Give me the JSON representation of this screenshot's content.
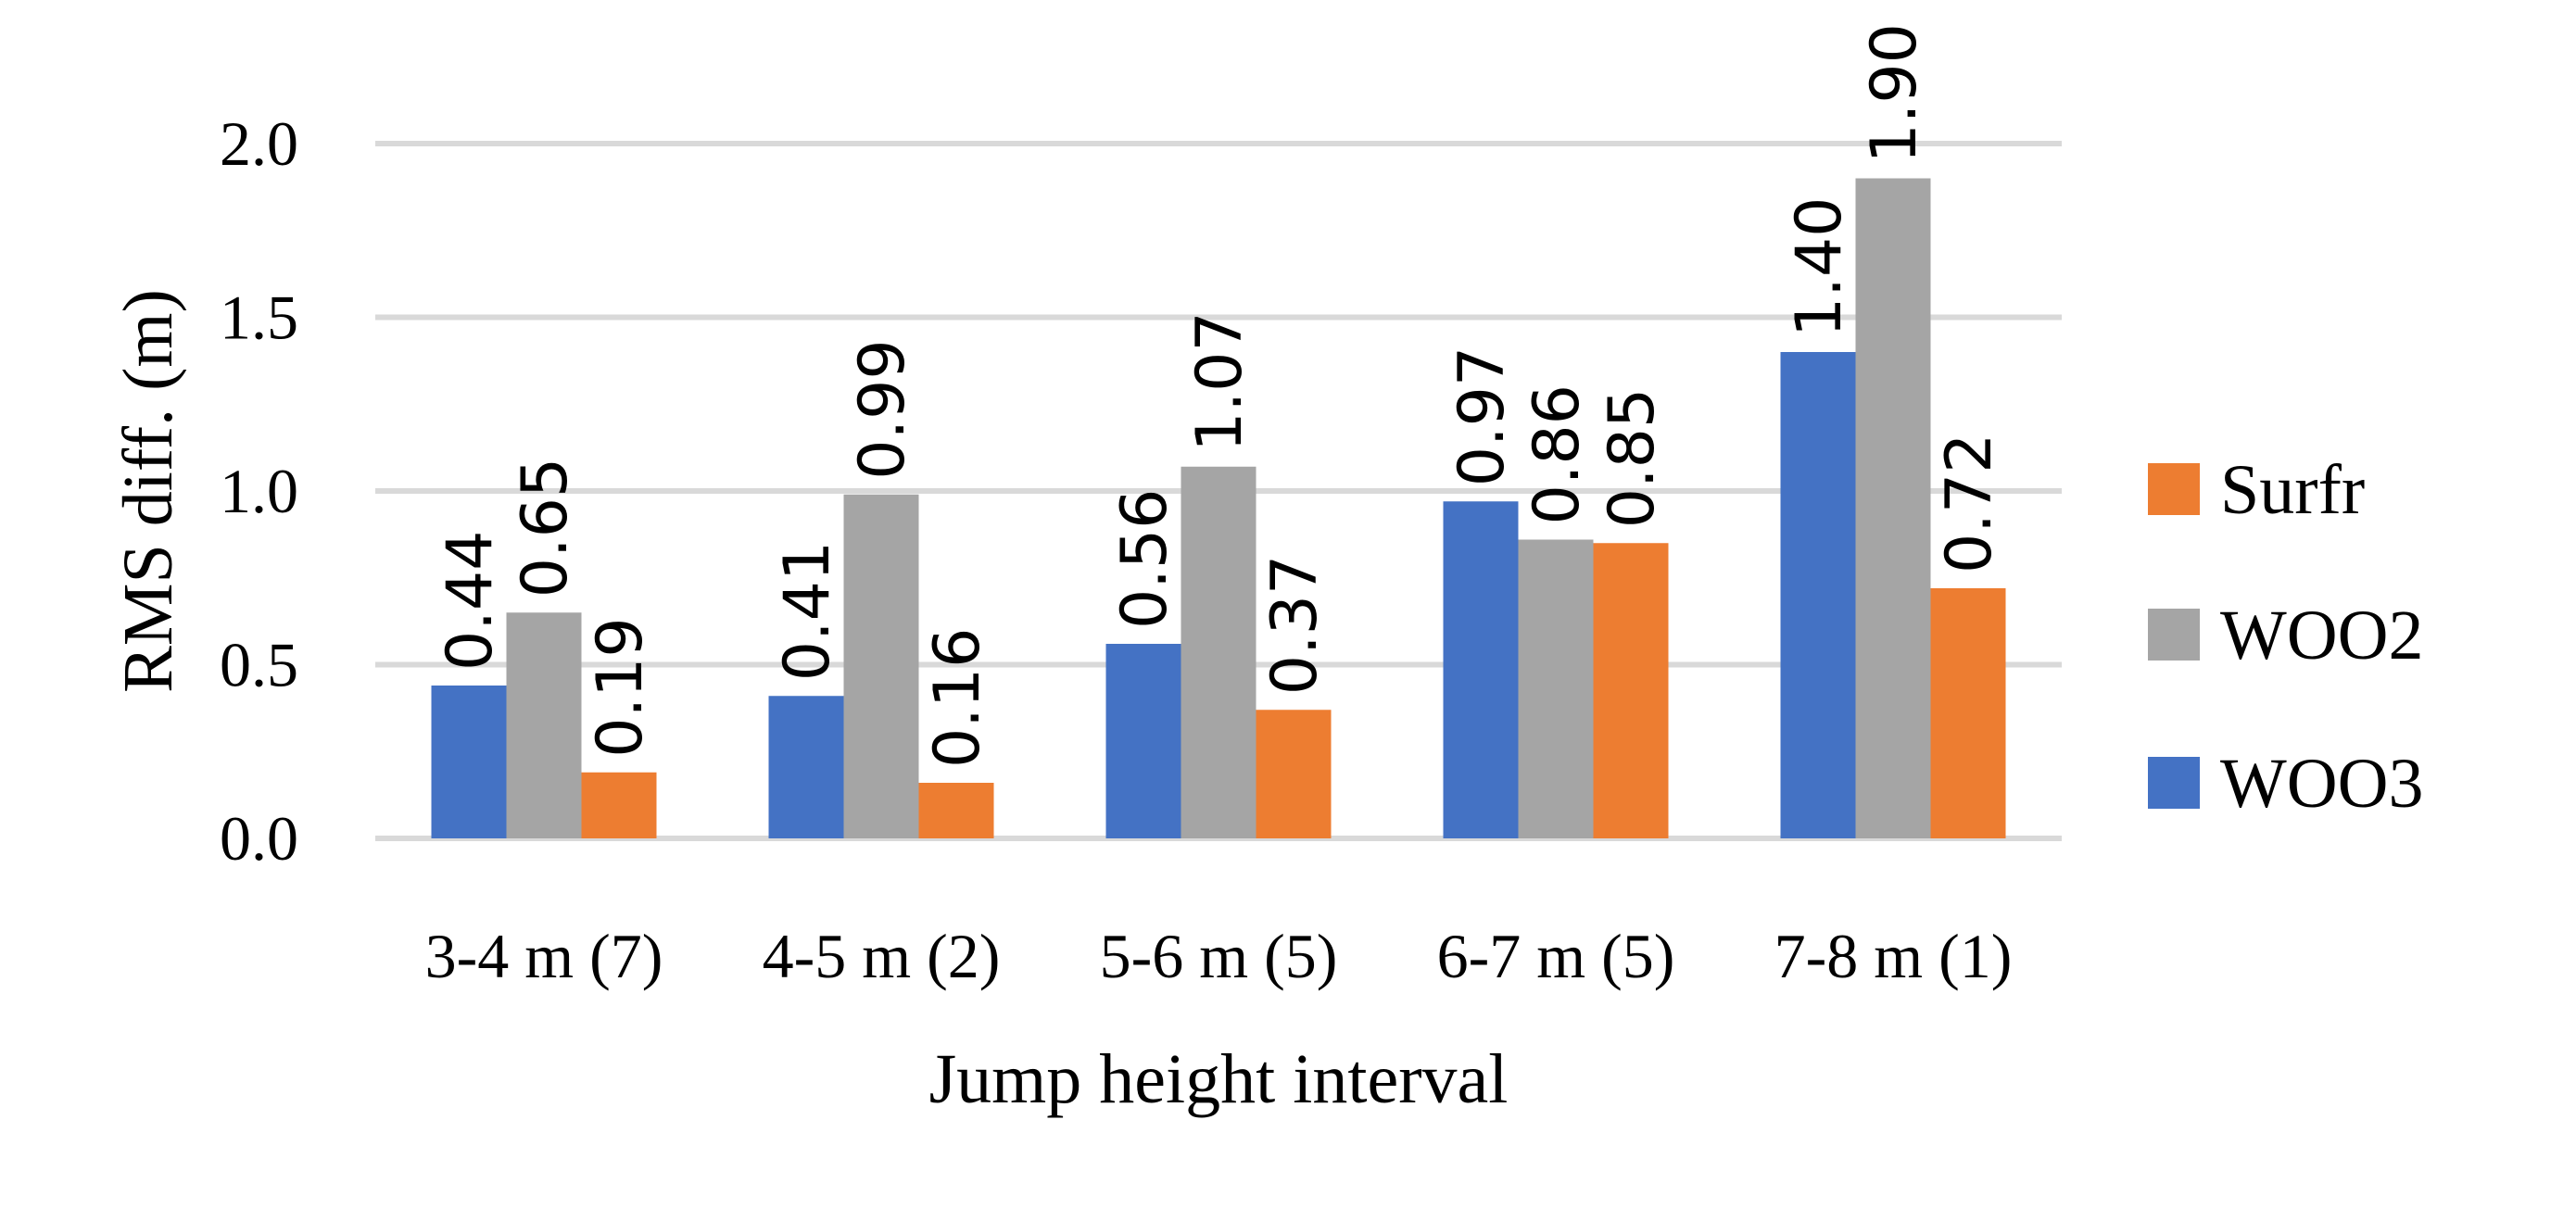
{
  "chart_data": {
    "type": "bar",
    "title": "",
    "xlabel": "Jump height interval",
    "ylabel": "RMS diff. (m)",
    "ylim": [
      0,
      2.0
    ],
    "yticks": [
      "0.0",
      "0.5",
      "1.0",
      "1.5",
      "2.0"
    ],
    "categories": [
      "3-4 m (7)",
      "4-5 m (2)",
      "5-6 m (5)",
      "6-7 m (5)",
      "7-8 m (1)"
    ],
    "series": [
      {
        "name": "WOO3",
        "color": "#4472c4",
        "values": [
          0.44,
          0.41,
          0.56,
          0.97,
          1.4
        ],
        "labels": [
          "0.44",
          "0.41",
          "0.56",
          "0.97",
          "1.40"
        ]
      },
      {
        "name": "WOO2",
        "color": "#a5a5a5",
        "values": [
          0.65,
          0.99,
          1.07,
          0.86,
          1.9
        ],
        "labels": [
          "0.65",
          "0.99",
          "1.07",
          "0.86",
          "1.90"
        ]
      },
      {
        "name": "Surfr",
        "color": "#ed7d31",
        "values": [
          0.19,
          0.16,
          0.37,
          0.85,
          0.72
        ],
        "labels": [
          "0.19",
          "0.16",
          "0.37",
          "0.85",
          "0.72"
        ]
      }
    ],
    "legend": {
      "position": "right",
      "order": [
        "Surfr",
        "WOO2",
        "WOO3"
      ]
    }
  }
}
